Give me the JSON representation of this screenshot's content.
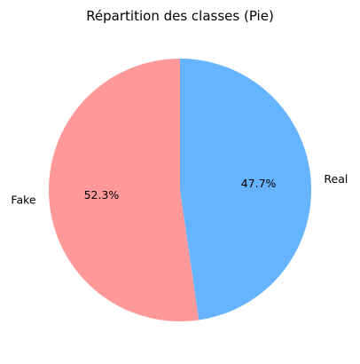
{
  "chart_data": {
    "type": "pie",
    "title": "Répartition des classes (Pie)",
    "slices": [
      {
        "label": "Fake",
        "value": 52.3,
        "pct_label": "52.3%",
        "color": "#ff9999"
      },
      {
        "label": "Real",
        "value": 47.7,
        "pct_label": "47.7%",
        "color": "#66b3ff"
      }
    ],
    "start_angle_deg": 90,
    "direction": "counterclockwise",
    "legend": "none"
  }
}
